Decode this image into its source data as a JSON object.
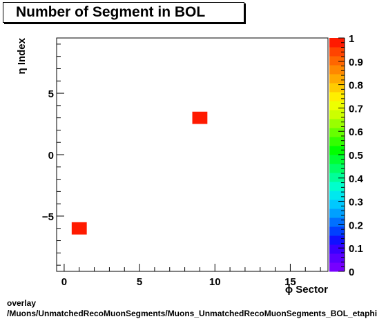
{
  "title": "Number of Segment in BOL",
  "footer": {
    "line1": "overlay",
    "line2": "/Muons/UnmatchedRecoMuonSegments/Muons_UnmatchedRecoMuonSegments_BOL_etaphi"
  },
  "chart_data": {
    "type": "heatmap",
    "title": "Number of Segment in BOL",
    "xlabel": "ϕ Sector",
    "ylabel": "η Index",
    "xlim": [
      -0.5,
      17.5
    ],
    "ylim": [
      -9.5,
      9.5
    ],
    "x_ticks": [
      0,
      5,
      10,
      15
    ],
    "y_ticks": [
      -5,
      0,
      5
    ],
    "z_range": [
      0,
      1
    ],
    "z_ticks": [
      "0",
      "0.1",
      "0.2",
      "0.3",
      "0.4",
      "0.5",
      "0.6",
      "0.7",
      "0.8",
      "0.9",
      "1"
    ],
    "cells": [
      {
        "x": 1,
        "y": -6,
        "value": 1
      },
      {
        "x": 9,
        "y": 3,
        "value": 1
      }
    ],
    "palette": [
      "#7700ff",
      "#5a00ff",
      "#3a00ff",
      "#1010ff",
      "#0040ff",
      "#0070ff",
      "#00a0ff",
      "#00c8ff",
      "#00e8ee",
      "#00ffcc",
      "#00ff99",
      "#00ff66",
      "#00ff33",
      "#00ff00",
      "#33ff00",
      "#66ff00",
      "#99ff00",
      "#ccff00",
      "#eeff00",
      "#ffee00",
      "#ffcc00",
      "#ffaa00",
      "#ff8800",
      "#ff6600",
      "#ff4400",
      "#ff1a00"
    ],
    "grid": false,
    "legend": "none"
  }
}
